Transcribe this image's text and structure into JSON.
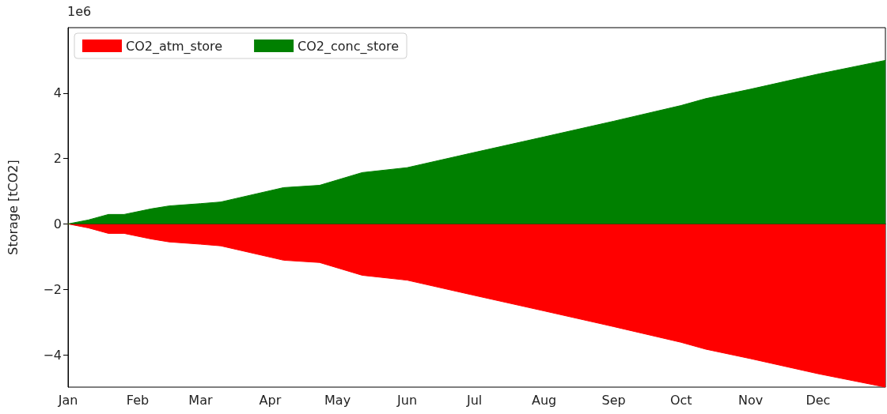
{
  "chart_data": {
    "type": "area",
    "ylabel": "Storage [tCO2]",
    "annotations": [
      "1e6"
    ],
    "x": [
      "--01-01",
      "--01-10",
      "--01-19",
      "--01-26",
      "--02-07",
      "--02-15",
      "--03-01",
      "--03-10",
      "--04-07",
      "--04-23",
      "--05-12",
      "--06-01",
      "--06-30",
      "--08-01",
      "--09-01",
      "--10-01",
      "--10-12",
      "--11-01",
      "--12-01",
      "--12-31"
    ],
    "series": [
      {
        "name": "CO2_atm_store",
        "color": "#ff0000",
        "values": [
          0,
          -0.12,
          -0.29,
          -0.29,
          -0.46,
          -0.55,
          -0.62,
          -0.67,
          -1.11,
          -1.18,
          -1.57,
          -1.72,
          -2.17,
          -2.66,
          -3.14,
          -3.62,
          -3.83,
          -4.12,
          -4.58,
          -4.99
        ]
      },
      {
        "name": "CO2_conc_store",
        "color": "#008000",
        "values": [
          0,
          0.12,
          0.29,
          0.29,
          0.46,
          0.55,
          0.62,
          0.67,
          1.11,
          1.18,
          1.57,
          1.72,
          2.17,
          2.66,
          3.14,
          3.62,
          3.83,
          4.12,
          4.58,
          5.0
        ]
      }
    ],
    "xlim": [
      "--01-01",
      "--12-31"
    ],
    "xticks": [
      {
        "value": "--01-01",
        "label": "Jan"
      },
      {
        "value": "--02-01",
        "label": "Feb"
      },
      {
        "value": "--03-01",
        "label": "Mar"
      },
      {
        "value": "--04-01",
        "label": "Apr"
      },
      {
        "value": "--05-01",
        "label": "May"
      },
      {
        "value": "--06-01",
        "label": "Jun"
      },
      {
        "value": "--07-01",
        "label": "Jul"
      },
      {
        "value": "--08-01",
        "label": "Aug"
      },
      {
        "value": "--09-01",
        "label": "Sep"
      },
      {
        "value": "--10-01",
        "label": "Oct"
      },
      {
        "value": "--11-01",
        "label": "Nov"
      },
      {
        "value": "--12-01",
        "label": "Dec"
      }
    ],
    "ylim": [
      -4.99,
      6
    ],
    "yticks": [
      -4,
      -2,
      0,
      2,
      4
    ],
    "legend": "top left",
    "marker": "none"
  }
}
